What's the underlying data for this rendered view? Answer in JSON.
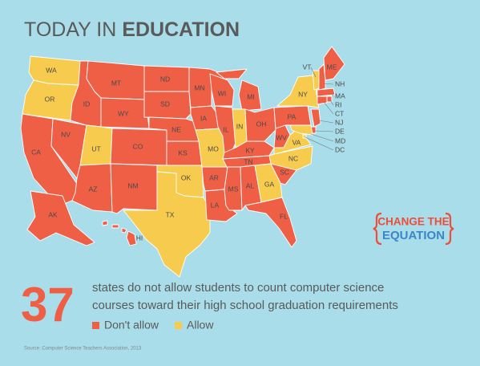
{
  "header": {
    "title_lead": "TODAY IN",
    "title_emphasis": "EDUCATION"
  },
  "map": {
    "legend": [
      {
        "label": "Don't allow",
        "color": "#ee5f46"
      },
      {
        "label": "Allow",
        "color": "#f7cb4d"
      }
    ],
    "states": [
      {
        "label": "WA",
        "allow": true
      },
      {
        "label": "OR",
        "allow": true
      },
      {
        "label": "CA",
        "allow": false
      },
      {
        "label": "NV",
        "allow": false
      },
      {
        "label": "ID",
        "allow": false
      },
      {
        "label": "MT",
        "allow": false
      },
      {
        "label": "WY",
        "allow": false
      },
      {
        "label": "UT",
        "allow": true
      },
      {
        "label": "CO",
        "allow": false
      },
      {
        "label": "AZ",
        "allow": false
      },
      {
        "label": "NM",
        "allow": false
      },
      {
        "label": "ND",
        "allow": false
      },
      {
        "label": "SD",
        "allow": false
      },
      {
        "label": "NE",
        "allow": false
      },
      {
        "label": "KS",
        "allow": false
      },
      {
        "label": "OK",
        "allow": true
      },
      {
        "label": "TX",
        "allow": true
      },
      {
        "label": "MN",
        "allow": false
      },
      {
        "label": "IA",
        "allow": false
      },
      {
        "label": "MO",
        "allow": true
      },
      {
        "label": "AR",
        "allow": false
      },
      {
        "label": "LA",
        "allow": false
      },
      {
        "label": "WI",
        "allow": false
      },
      {
        "label": "IL",
        "allow": false
      },
      {
        "label": "MI",
        "allow": false
      },
      {
        "label": "IN",
        "allow": true
      },
      {
        "label": "OH",
        "allow": false
      },
      {
        "label": "KY",
        "allow": false
      },
      {
        "label": "TN",
        "allow": false
      },
      {
        "label": "MS",
        "allow": false
      },
      {
        "label": "AL",
        "allow": false
      },
      {
        "label": "GA",
        "allow": true
      },
      {
        "label": "FL",
        "allow": false
      },
      {
        "label": "SC",
        "allow": false
      },
      {
        "label": "NC",
        "allow": true
      },
      {
        "label": "VA",
        "allow": true
      },
      {
        "label": "WV",
        "allow": false
      },
      {
        "label": "PA",
        "allow": false
      },
      {
        "label": "NY",
        "allow": true
      },
      {
        "label": "VT",
        "allow": true
      },
      {
        "label": "ME",
        "allow": false
      },
      {
        "label": "NH",
        "allow": false
      },
      {
        "label": "MA",
        "allow": false
      },
      {
        "label": "RI",
        "allow": false
      },
      {
        "label": "CT",
        "allow": false
      },
      {
        "label": "NJ",
        "allow": false
      },
      {
        "label": "DE",
        "allow": false
      },
      {
        "label": "MD",
        "allow": true
      },
      {
        "label": "DC",
        "allow": true
      },
      {
        "label": "AK",
        "allow": false
      },
      {
        "label": "HI",
        "allow": false
      }
    ]
  },
  "logo": {
    "line1": "CHANGE THE",
    "line2": "EQUATION"
  },
  "stat": {
    "number": 37,
    "lines": [
      "states do not allow students to count computer science",
      "courses toward their high school graduation requirements"
    ]
  },
  "source": "Source: Computer Science Teachers Association, 2013"
}
